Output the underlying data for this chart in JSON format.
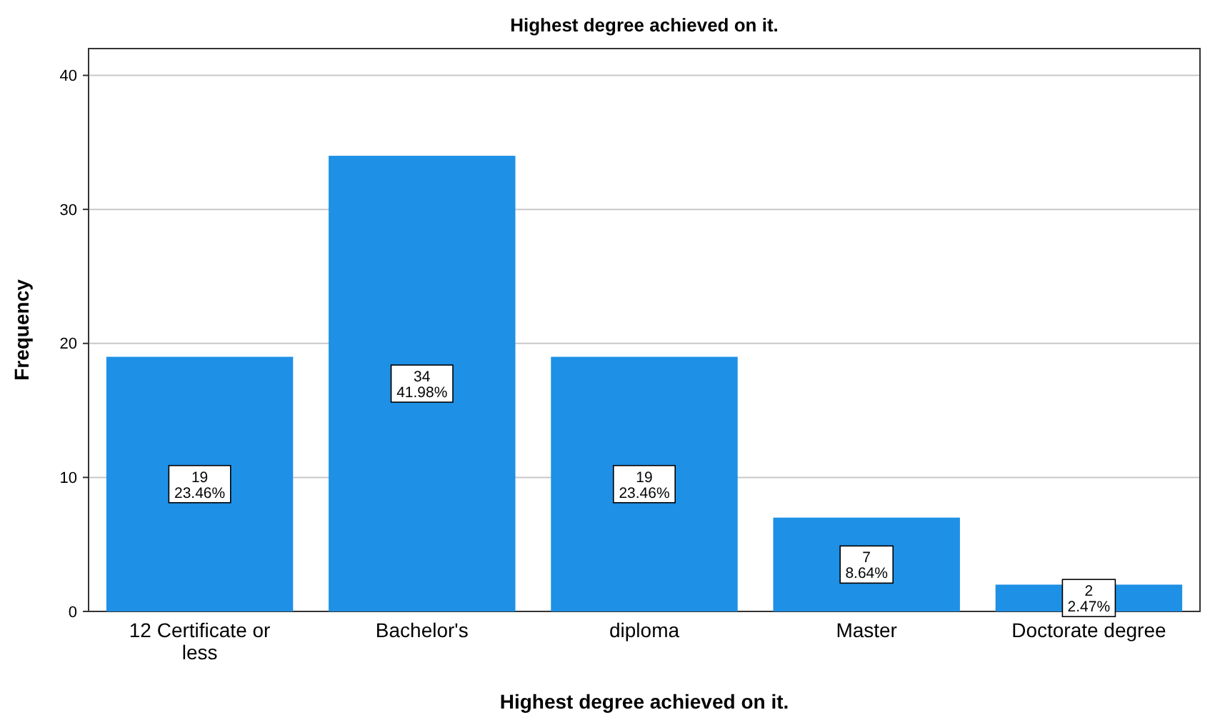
{
  "chart_data": {
    "type": "bar",
    "title": "Highest degree achieved on it.",
    "xlabel": "Highest degree achieved on it.",
    "ylabel": "Frequency",
    "categories": [
      "12 Certificate or less",
      "Bachelor's",
      "diploma",
      "Master",
      "Doctorate degree"
    ],
    "values": [
      19,
      34,
      19,
      7,
      2
    ],
    "color": "#1e90e6",
    "value_labels": [
      "19\n23.46%",
      "34\n41.98%",
      "19\n23.46%",
      "7\n8.64%",
      "2\n2.47%"
    ],
    "ylim": [
      0,
      42
    ],
    "yticks": [
      0,
      10,
      20,
      30,
      40
    ],
    "grid": "y"
  }
}
